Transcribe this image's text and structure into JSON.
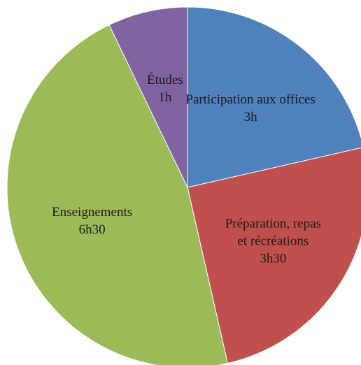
{
  "chart_data": {
    "type": "pie",
    "categories": [
      "Participation aux offices",
      "Préparation, repas et récréations",
      "Enseignements",
      "Études"
    ],
    "values": [
      3,
      3.5,
      6.5,
      1
    ],
    "value_labels": [
      "3h",
      "3h30",
      "6h30",
      "1h"
    ],
    "colors": [
      "#4f81bd",
      "#c0504d",
      "#9bbb59",
      "#8064a2"
    ]
  }
}
